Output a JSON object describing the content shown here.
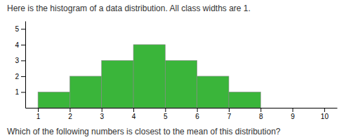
{
  "chart_data": {
    "type": "histogram",
    "title": "Here is the histogram of a data distribution. All class widths are 1.",
    "annotations": [
      "Which of the following numbers is closest to the mean of this distribution?"
    ],
    "bins": [
      1,
      2,
      3,
      4,
      5,
      6,
      7,
      8
    ],
    "values": [
      1,
      2,
      3,
      4,
      3,
      2,
      1
    ],
    "color": "#3ab53a",
    "xlim": [
      0.6,
      10.4
    ],
    "ylim": [
      0,
      5.5
    ],
    "xticks": [
      1,
      2,
      3,
      4,
      5,
      6,
      7,
      8,
      9,
      10
    ],
    "yticks": [
      1,
      2,
      3,
      4,
      5
    ]
  }
}
